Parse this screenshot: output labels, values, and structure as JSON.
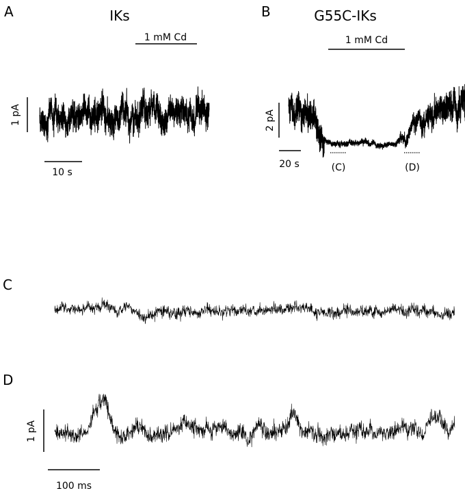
{
  "chart_data": [
    {
      "type": "line",
      "panel_label": "A",
      "title": "IKs",
      "annotation": "1 mM Cd",
      "scale_bars": {
        "vertical": "1 pA",
        "horizontal": "10 s"
      },
      "description_of_series": "single-channel current noise, unchanged by Cd"
    },
    {
      "type": "line",
      "panel_label": "B",
      "title": "G55C-IKs",
      "annotation": "1 mM Cd",
      "scale_bars": {
        "vertical": "2 pA",
        "horizontal": "20 s"
      },
      "segment_markers": [
        "(C)",
        "(D)"
      ]
    },
    {
      "type": "line",
      "panel_label": "C"
    },
    {
      "type": "line",
      "panel_label": "D",
      "scale_bars": {
        "vertical": "1 pA",
        "horizontal": "100 ms"
      }
    }
  ]
}
